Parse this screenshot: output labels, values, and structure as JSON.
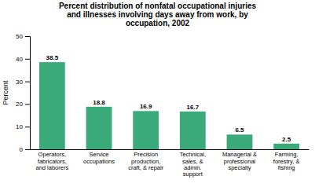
{
  "chart_data": {
    "type": "bar",
    "title": "Percent distribution of nonfatal occupational injuries\nand illnesses involving days away from work, by\noccupation, 2002",
    "categories": [
      "Operators,\nfabricators,\nand laborers",
      "Service\noccupations",
      "Precision\nproduction,\ncraft, & repair",
      "Technical,\nsales, &\nadmin.\nsupport",
      "Managerial &\nprofessional\nspecialty",
      "Farming,\nforestry, &\nfishing"
    ],
    "values": [
      38.5,
      18.8,
      16.9,
      16.7,
      6.5,
      2.5
    ],
    "color": "#3aaa7a",
    "ylabel": "Percent",
    "ylim": [
      0,
      50
    ],
    "yticks": [
      0,
      10,
      20,
      30,
      40,
      50
    ],
    "data_labels": true
  }
}
